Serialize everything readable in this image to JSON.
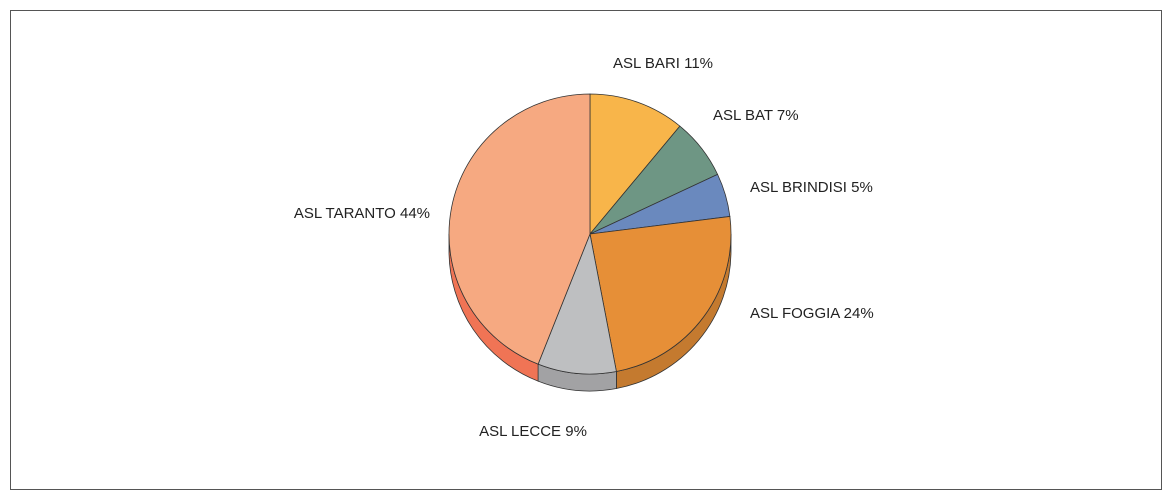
{
  "chart_data": {
    "type": "pie",
    "title": "",
    "slices": [
      {
        "label": "ASL BARI 11%",
        "value": 11,
        "color": "#F8B54A"
      },
      {
        "label": "ASL BAT 7%",
        "value": 7,
        "color": "#6E9684"
      },
      {
        "label": "ASL BRINDISI 5%",
        "value": 5,
        "color": "#6A89BE"
      },
      {
        "label": "ASL FOGGIA 24%",
        "value": 24,
        "color": "#E68F37"
      },
      {
        "label": "ASL LECCE 9%",
        "value": 9,
        "color": "#BEBFC1"
      },
      {
        "label": "ASL TARANTO 44%",
        "value": 44,
        "color": "#F6A981"
      }
    ]
  }
}
